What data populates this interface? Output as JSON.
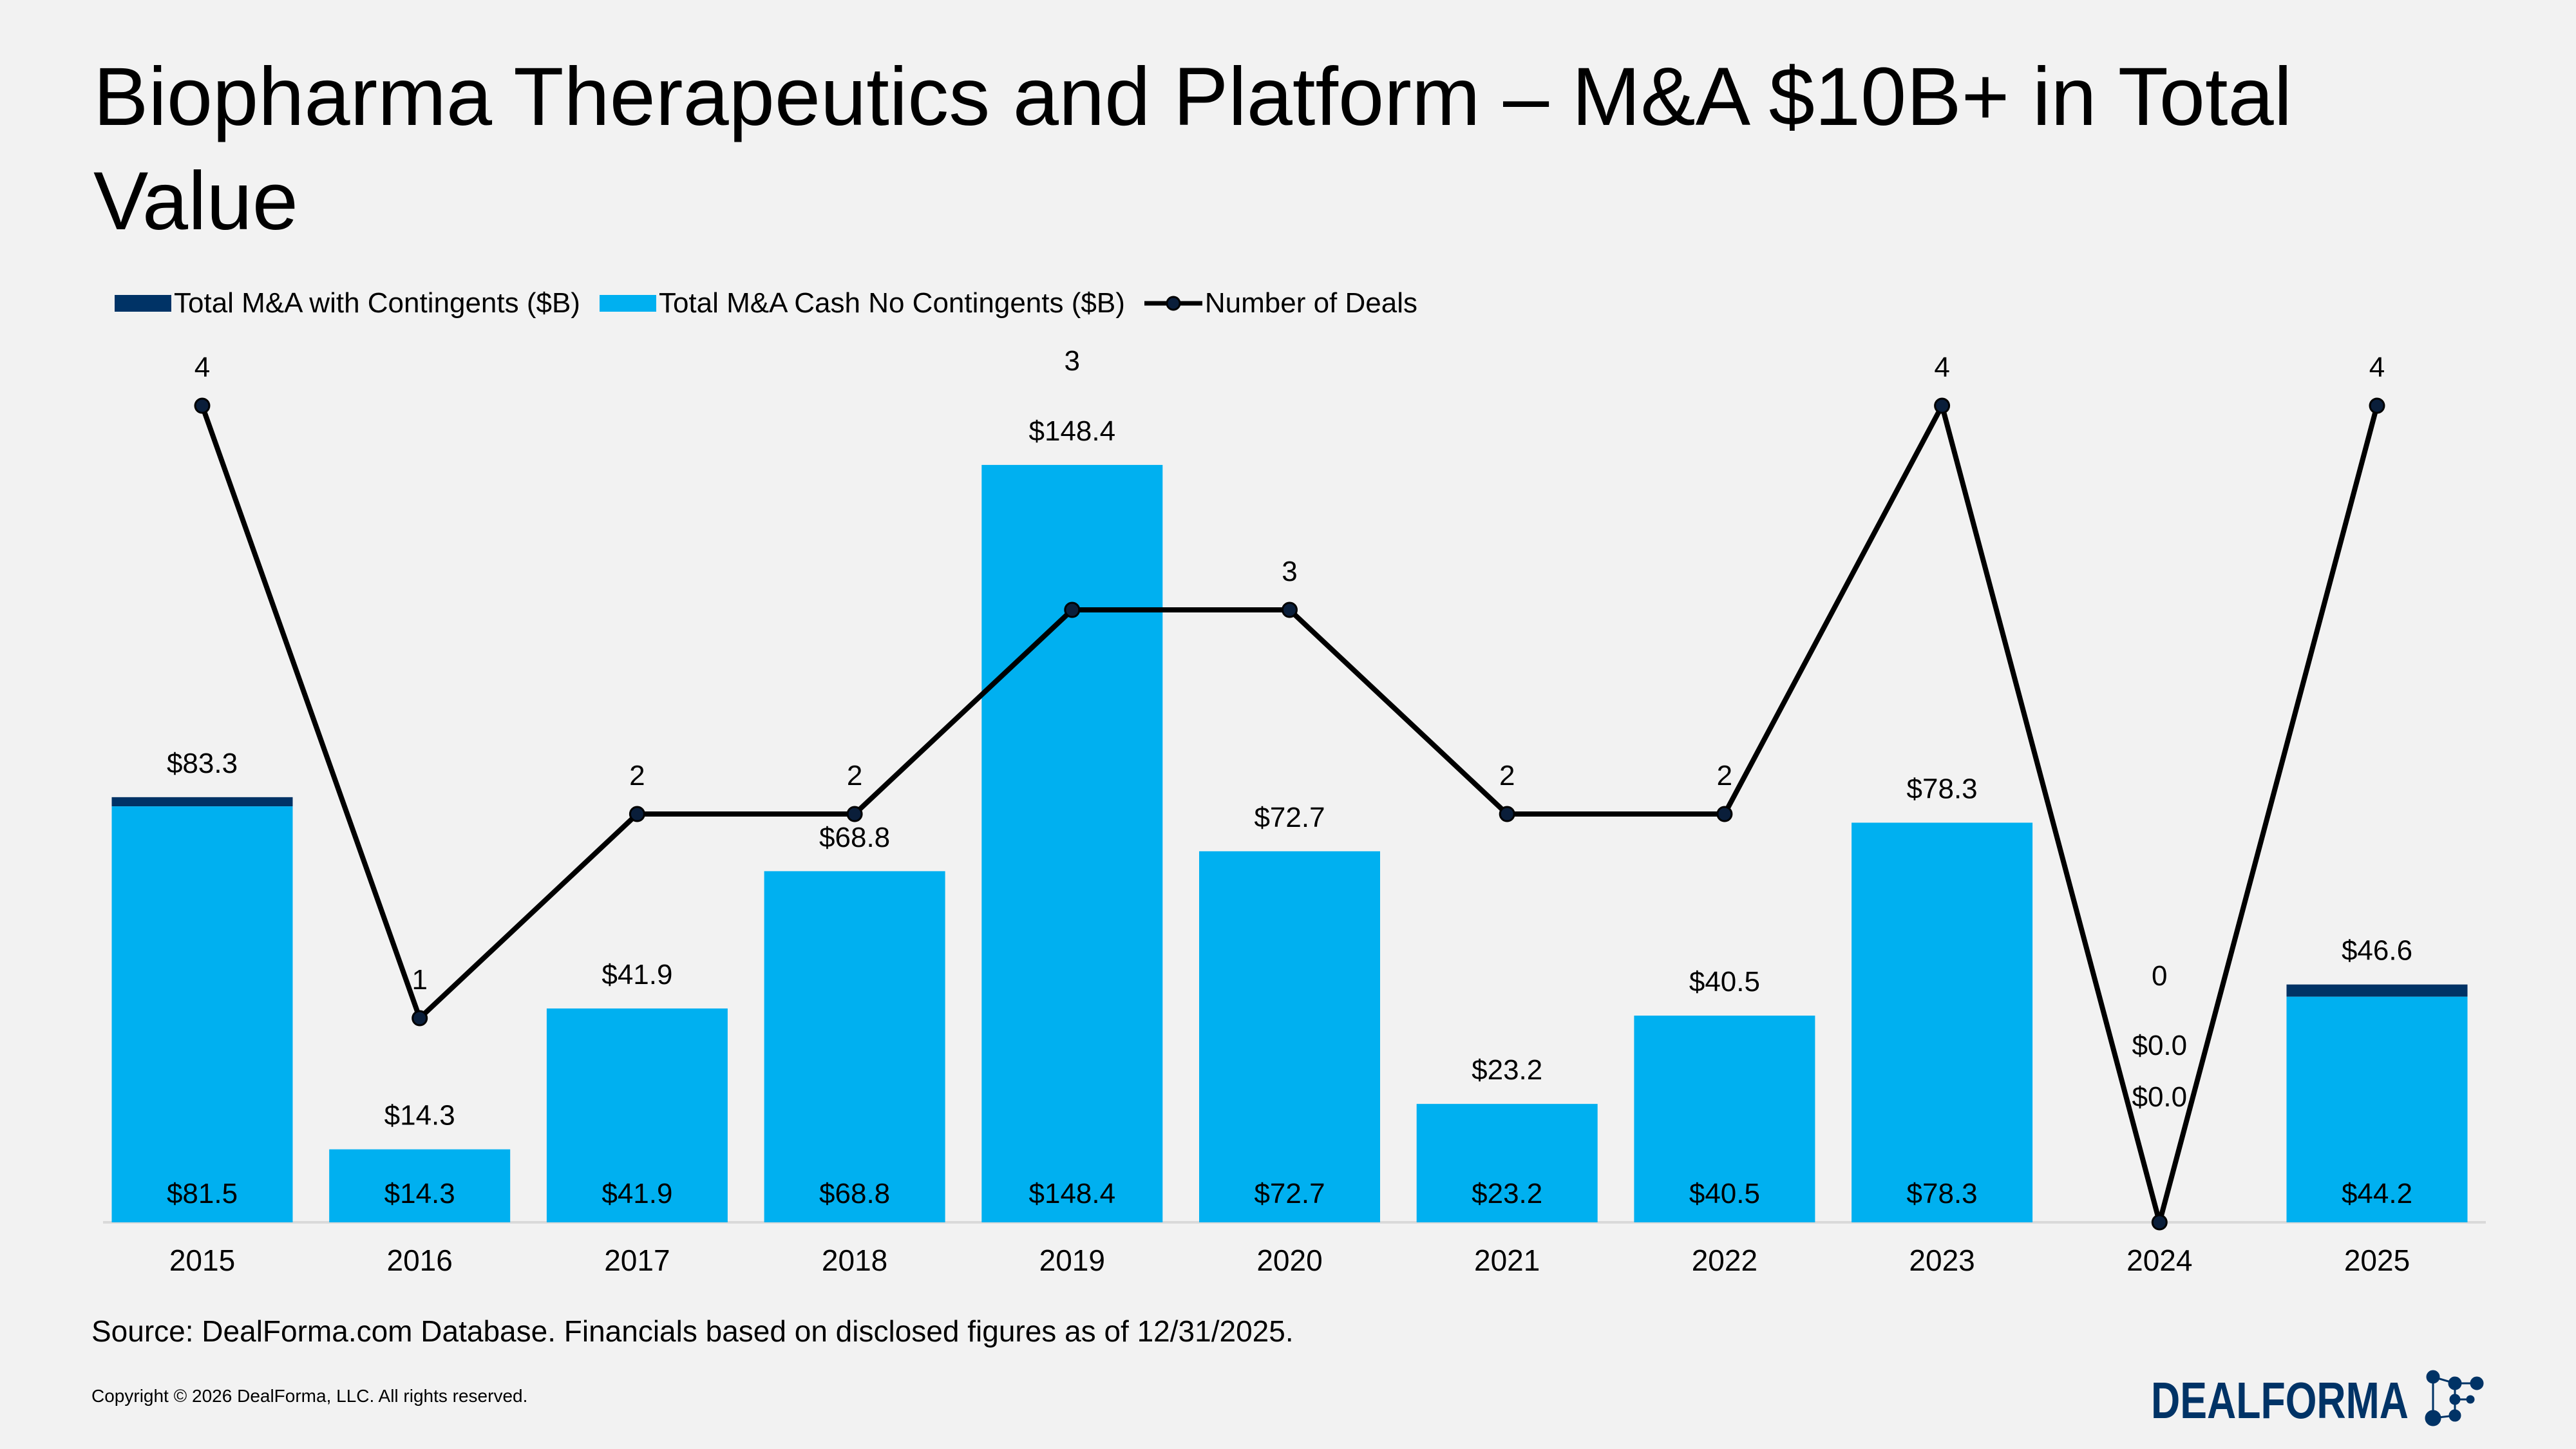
{
  "title": "Biopharma Therapeutics and Platform – M&A $10B+ in Total Value",
  "source": "Source: DealForma.com Database. Financials based on disclosed figures as of 12/31/2025.",
  "copyright": "Copyright © 2026 DealForma, LLC. All rights reserved.",
  "logo_text": "DEALFORMA",
  "colors": {
    "contingents": "#003366",
    "cash": "#00b0f0",
    "deals_line": "#000000",
    "background": "#f2f2f2"
  },
  "chart_data": {
    "type": "bar",
    "stacked": true,
    "legend_position": "top-left",
    "grid": false,
    "categories": [
      "2015",
      "2016",
      "2017",
      "2018",
      "2019",
      "2020",
      "2021",
      "2022",
      "2023",
      "2024",
      "2025"
    ],
    "series": [
      {
        "name": "Total M&A with Contingents ($B)",
        "kind": "bar",
        "totals": [
          83.3,
          14.3,
          41.9,
          68.8,
          148.4,
          72.7,
          23.2,
          40.5,
          78.3,
          0.0,
          46.6
        ],
        "total_labels": [
          "$83.3",
          "$14.3",
          "$41.9",
          "$68.8",
          "$148.4",
          "$72.7",
          "$23.2",
          "$40.5",
          "$78.3",
          "$0.0",
          "$46.6"
        ]
      },
      {
        "name": "Total M&A Cash No Contingents ($B)",
        "kind": "bar",
        "values": [
          81.5,
          14.3,
          41.9,
          68.8,
          148.4,
          72.7,
          23.2,
          40.5,
          78.3,
          0.0,
          44.2
        ],
        "value_labels": [
          "$81.5",
          "$14.3",
          "$41.9",
          "$68.8",
          "$148.4",
          "$72.7",
          "$23.2",
          "$40.5",
          "$78.3",
          "$0.0",
          "$44.2"
        ]
      },
      {
        "name": "Number of Deals",
        "kind": "line",
        "values": [
          4,
          1,
          2,
          2,
          3,
          3,
          2,
          2,
          4,
          0,
          4
        ]
      }
    ],
    "ylim": [
      0,
      150
    ],
    "y2lim": [
      0,
      4
    ]
  }
}
